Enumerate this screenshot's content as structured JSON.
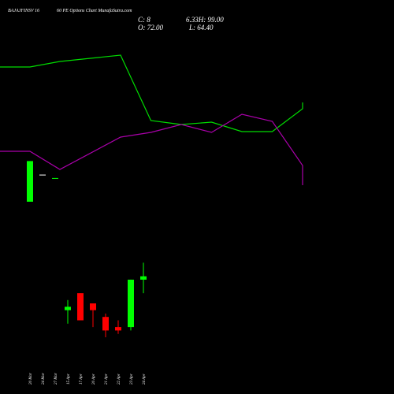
{
  "chart_data": {
    "type": "candlestick",
    "title": "BAJAJFINSV 16 60 PE Options Chart MunafaSutra.com",
    "title_parts": [
      "BAJAJFINSV 16",
      "60 PE Options Chart MunafaSutra.com"
    ],
    "readout": {
      "c_label": "C: 8",
      "h_label": "6.33H: 99.00",
      "o_label": "O: 72.00",
      "l_label": "L: 64.40"
    },
    "x_labels": [
      "20 Mar",
      "24 Mar",
      "27 Mar",
      "15 Apr",
      "17 Apr",
      "20 Apr",
      "21 Apr",
      "22 Apr",
      "23 Apr",
      "24 Apr"
    ],
    "candles": [
      {
        "open": 52,
        "high": 52,
        "low": 40,
        "close": 40,
        "color": "green"
      },
      {
        "open": 48,
        "high": 48,
        "low": 48,
        "close": 48,
        "color": "white"
      },
      {
        "open": 47,
        "high": 47,
        "low": 47,
        "close": 47,
        "color": "green"
      },
      {
        "open": 8,
        "high": 11,
        "low": 4,
        "close": 9,
        "color": "green"
      },
      {
        "open": 13,
        "high": 13,
        "low": 5,
        "close": 5,
        "color": "red"
      },
      {
        "open": 10,
        "high": 10,
        "low": 3,
        "close": 8,
        "color": "red"
      },
      {
        "open": 6,
        "high": 7,
        "low": 0,
        "close": 2,
        "color": "red"
      },
      {
        "open": 3,
        "high": 5,
        "low": 1,
        "close": 2,
        "color": "red"
      },
      {
        "open": 3,
        "high": 17,
        "low": 2,
        "close": 17,
        "color": "green"
      },
      {
        "open": 18,
        "high": 22,
        "low": 13,
        "close": 17,
        "color": "green"
      }
    ],
    "series": [
      {
        "color": "#00dd00",
        "values": [
          85,
          85,
          78,
          70,
          153,
          158,
          155,
          167,
          167,
          138,
          130
        ]
      },
      {
        "color": "#aa00aa",
        "values": [
          192,
          192,
          215,
          174,
          168,
          158,
          168,
          145,
          154,
          210,
          235
        ]
      }
    ],
    "series_x_index": [
      -1,
      0,
      2,
      4,
      5,
      6,
      7,
      8,
      9,
      10,
      11
    ],
    "colors": {
      "background": "#000000",
      "up": "#00ff00",
      "down": "#ff0000",
      "text": "#ffffff"
    }
  }
}
